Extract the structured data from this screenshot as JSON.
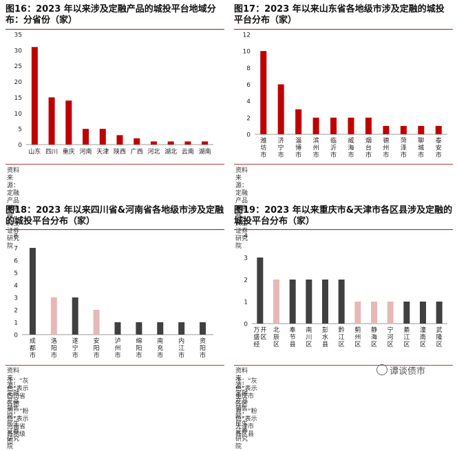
{
  "panels": [
    {
      "title": "图16：2023 年以来涉及定融产品的城投平台地域分布：分省份（家）",
      "source": "资料来源：定融产品销售网，民生证券研究院",
      "note": "",
      "chart_data": {
        "type": "bar",
        "categories": [
          "山东",
          "四川",
          "重庆",
          "河南",
          "天津",
          "陕西",
          "广西",
          "河北",
          "湖北",
          "云南",
          "湖南"
        ],
        "values": [
          31,
          15,
          14,
          5,
          5,
          3,
          2,
          1,
          1,
          1,
          1
        ],
        "ylim": [
          0,
          35
        ],
        "yticks": [
          0,
          5,
          10,
          15,
          20,
          25,
          30,
          35
        ],
        "colors": [
          "#c00000",
          "#c00000",
          "#c00000",
          "#c00000",
          "#c00000",
          "#c00000",
          "#c00000",
          "#c00000",
          "#c00000",
          "#c00000",
          "#c00000"
        ],
        "vertical_labels": false,
        "xlabel": "",
        "ylabel": ""
      }
    },
    {
      "title": "图17：2023 年以来山东省各地级市涉及定融的城投平台分布（家）",
      "source": "资料来源：定融产品销售网，民生证券研究院",
      "note": "",
      "chart_data": {
        "type": "bar",
        "categories": [
          "潍坊市",
          "济宁市",
          "淄博市",
          "滨州市",
          "临沂市",
          "威海市",
          "烟台市",
          "德州市",
          "菏泽市",
          "聊城市",
          "泰安市"
        ],
        "values": [
          10,
          6,
          3,
          2,
          2,
          2,
          2,
          1,
          1,
          1,
          1
        ],
        "ylim": [
          0,
          12
        ],
        "yticks": [
          0,
          2,
          4,
          6,
          8,
          10,
          12
        ],
        "colors": [
          "#c00000",
          "#c00000",
          "#c00000",
          "#c00000",
          "#c00000",
          "#c00000",
          "#c00000",
          "#c00000",
          "#c00000",
          "#c00000",
          "#c00000"
        ],
        "vertical_labels": true,
        "xlabel": "",
        "ylabel": ""
      }
    },
    {
      "title": "图18：2023 年以来四川省&河南省各地级市涉及定融的城投平台分布（家）",
      "source": "资料来源：定融产品销售网，民生证券研究院",
      "note": "注：“灰色”表示四川省各地市；“粉色”表示河南省各地级市",
      "chart_data": {
        "type": "bar",
        "categories": [
          "成都市",
          "洛阳市",
          "遂宁市",
          "安阳市",
          "泸州市",
          "绵阳市",
          "南充市",
          "内江市",
          "资阳市"
        ],
        "values": [
          7,
          3,
          3,
          2,
          1,
          1,
          1,
          1,
          1
        ],
        "ylim": [
          0,
          8
        ],
        "yticks": [
          0,
          1,
          2,
          3,
          4,
          5,
          6,
          7,
          8
        ],
        "colors": [
          "#404040",
          "#e6b8b8",
          "#404040",
          "#e6b8b8",
          "#404040",
          "#404040",
          "#404040",
          "#404040",
          "#404040"
        ],
        "vertical_labels": true,
        "xlabel": "",
        "ylabel": ""
      }
    },
    {
      "title": "图19：2023 年以来重庆市&天津市各区县涉及定融的城投平台分布（家）",
      "source": "资料来源：定融产品销售网，民生证券研究院",
      "note": "注：“灰色”表示重庆市各区县；“粉色”表示天津市各区县",
      "chart_data": {
        "type": "bar",
        "categories": [
          "万盛经开区",
          "北辰区",
          "奉节县",
          "南川区",
          "彭水县",
          "黔江区",
          "蓟州区",
          "静海区",
          "宁河区",
          "綦江区",
          "潼南区",
          "武隆区"
        ],
        "values": [
          3,
          2,
          2,
          2,
          2,
          2,
          1,
          1,
          1,
          1,
          1,
          1
        ],
        "ylim": [
          0,
          4
        ],
        "yticks": [
          0,
          1,
          2,
          3,
          4
        ],
        "colors": [
          "#404040",
          "#e6b8b8",
          "#404040",
          "#404040",
          "#404040",
          "#404040",
          "#e6b8b8",
          "#e6b8b8",
          "#e6b8b8",
          "#404040",
          "#404040",
          "#404040"
        ],
        "vertical_labels": true,
        "xlabel": "",
        "ylabel": ""
      }
    }
  ],
  "watermark": "谭谈债市"
}
